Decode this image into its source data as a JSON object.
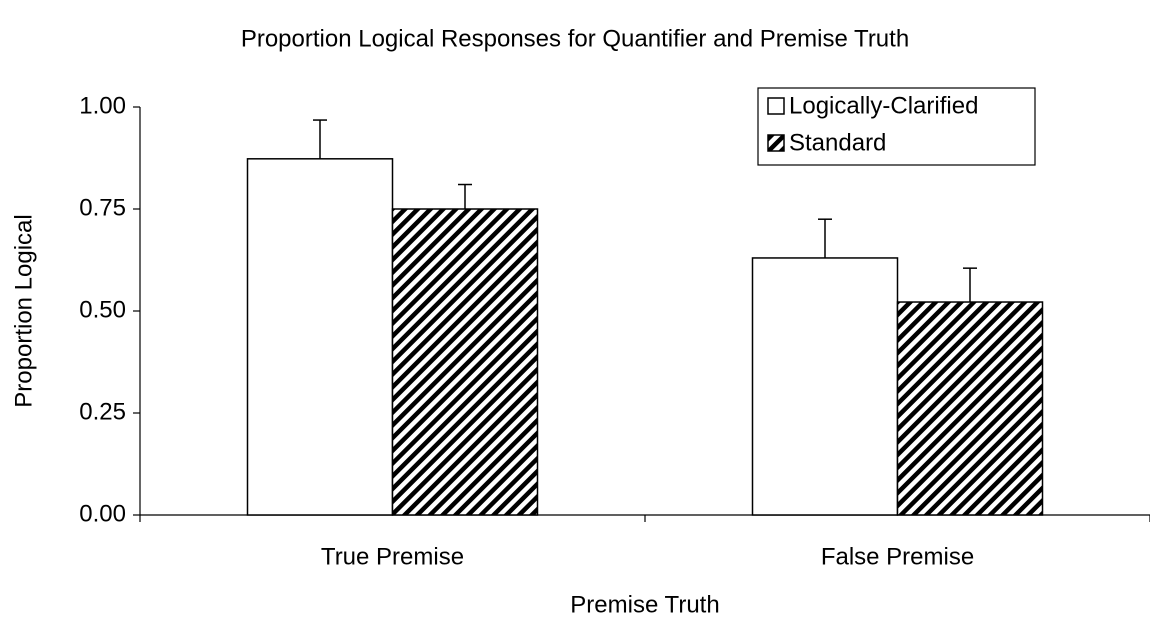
{
  "chart_data": {
    "type": "bar",
    "title": "Proportion Logical Responses for Quantifier and Premise Truth",
    "x_label": "Premise Truth",
    "y_label": "Proportion Logical",
    "categories": [
      "True Premise",
      "False Premise"
    ],
    "series": [
      {
        "name": "Logically-Clarified",
        "color": "#ffffff",
        "pattern": "solid",
        "values": [
          0.873,
          0.63
        ],
        "errors": [
          0.095,
          0.095
        ]
      },
      {
        "name": "Standard",
        "color": "#000000",
        "pattern": "hatch",
        "values": [
          0.75,
          0.522
        ],
        "errors": [
          0.06,
          0.083
        ]
      }
    ],
    "ylim": [
      0,
      1
    ],
    "yticks": [
      {
        "value": 0,
        "label": "0.00"
      },
      {
        "value": 0.25,
        "label": "0.25"
      },
      {
        "value": 0.5,
        "label": "0.50"
      },
      {
        "value": 0.75,
        "label": "0.75"
      },
      {
        "value": 1,
        "label": "1.00"
      }
    ],
    "grid": false,
    "legend": "top-right"
  }
}
